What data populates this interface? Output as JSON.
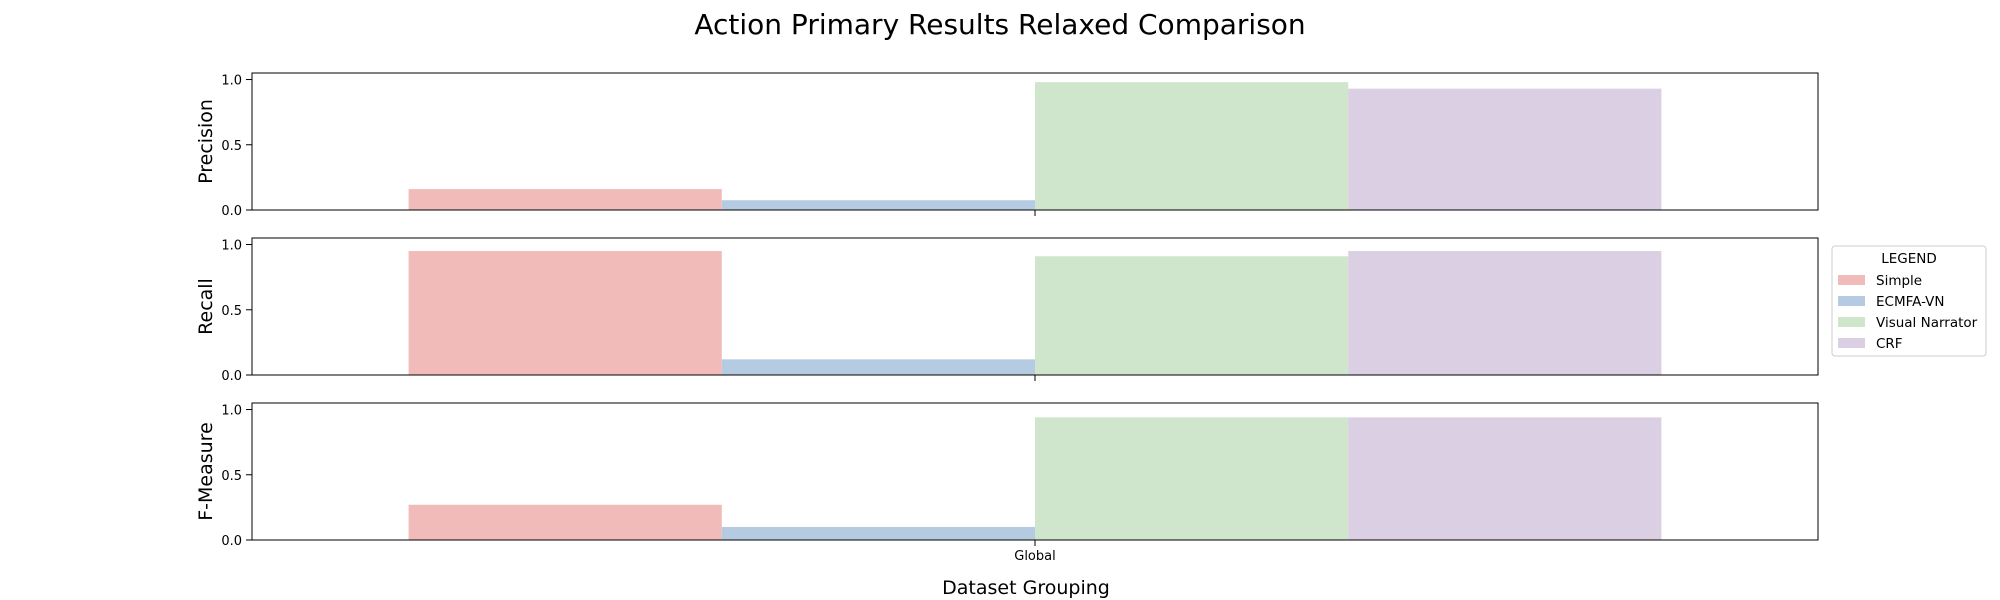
{
  "chart_data": {
    "type": "bar",
    "title": "Action Primary Results Relaxed Comparison",
    "xlabel": "Dataset Grouping",
    "categories": [
      "Global"
    ],
    "legend": {
      "title": "LEGEND",
      "placement": "center-right, outside"
    },
    "series": [
      {
        "name": "Simple",
        "color": "#f1bbb9"
      },
      {
        "name": "ECMFA-VN",
        "color": "#b4cbe1"
      },
      {
        "name": "Visual Narrator",
        "color": "#cfe6cc"
      },
      {
        "name": "CRF",
        "color": "#dbcfe3"
      }
    ],
    "panels": [
      {
        "ylabel": "Precision",
        "ylim": [
          0,
          1.05
        ],
        "yticks": [
          "0.0",
          "0.5",
          "1.0"
        ],
        "values": [
          0.16,
          0.075,
          0.98,
          0.93
        ]
      },
      {
        "ylabel": "Recall",
        "ylim": [
          0,
          1.05
        ],
        "yticks": [
          "0.0",
          "0.5",
          "1.0"
        ],
        "values": [
          0.95,
          0.12,
          0.91,
          0.95
        ]
      },
      {
        "ylabel": "F-Measure",
        "ylim": [
          0,
          1.05
        ],
        "yticks": [
          "0.0",
          "0.5",
          "1.0"
        ],
        "values": [
          0.27,
          0.1,
          0.94,
          0.94
        ]
      }
    ],
    "grid": false
  }
}
